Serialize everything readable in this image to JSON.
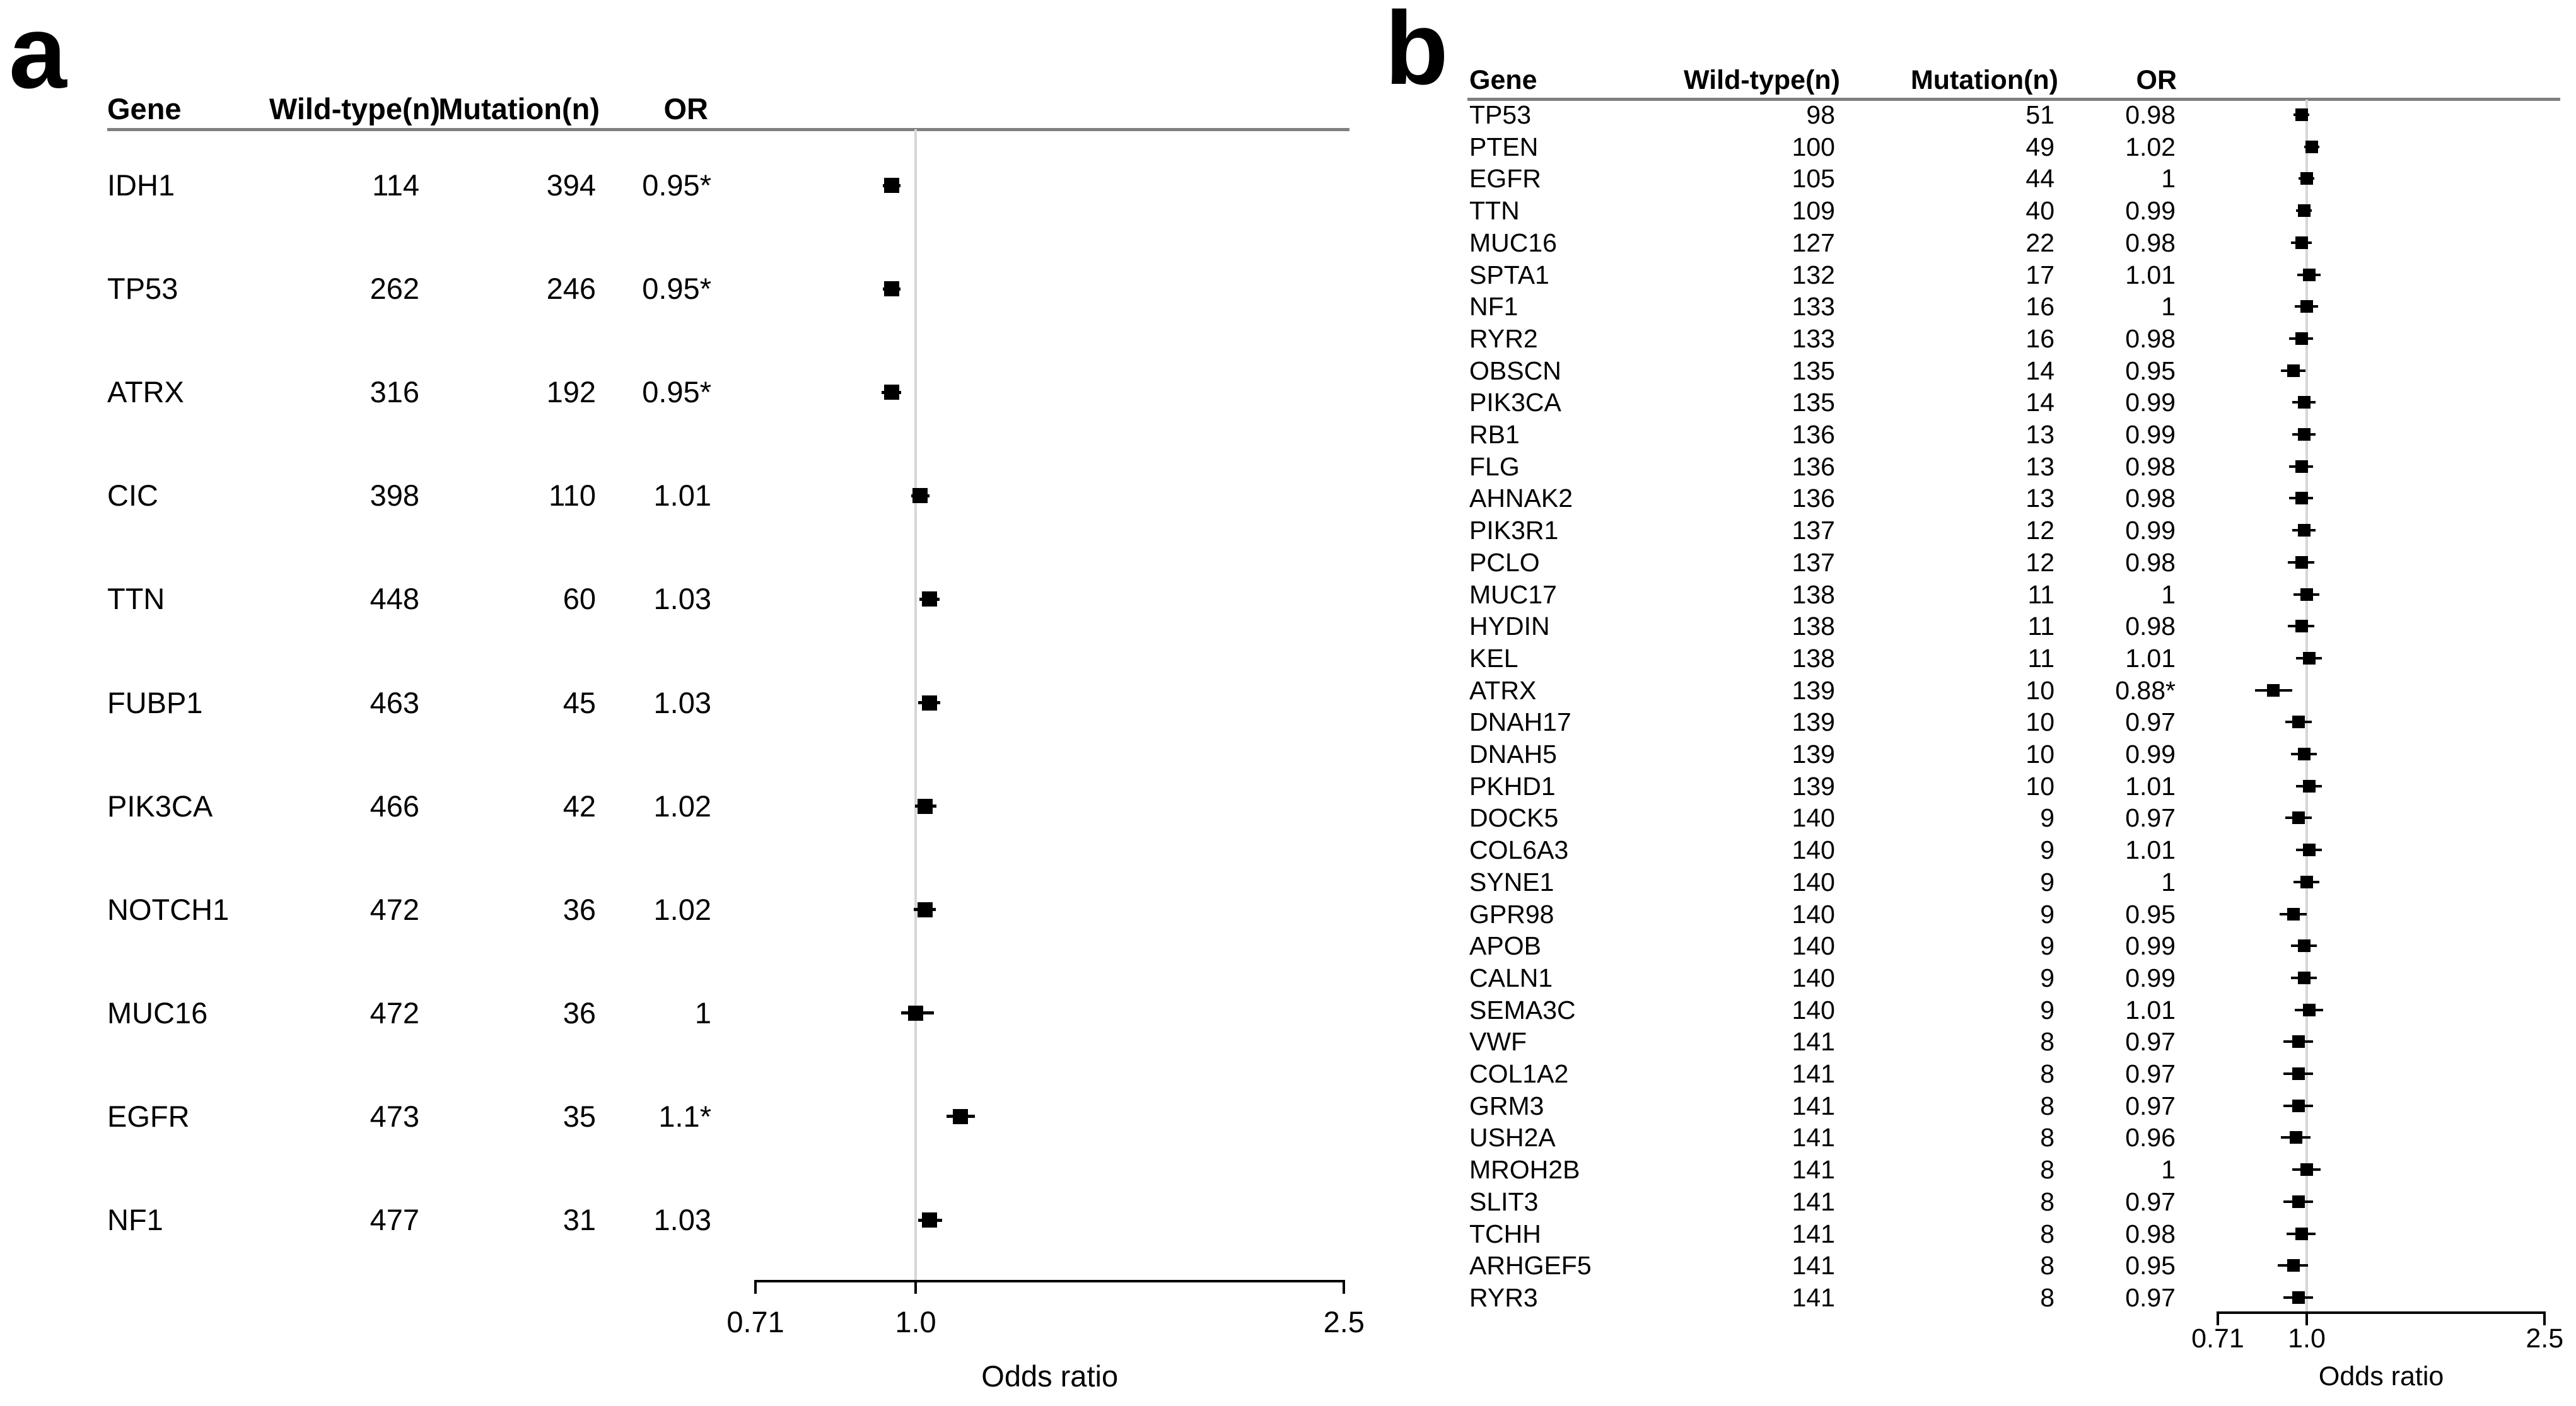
{
  "figure": {
    "panel_a_label": "a",
    "panel_b_label": "b"
  },
  "chart_data": [
    {
      "type": "forest",
      "panel": "a",
      "columns": {
        "gene": "Gene",
        "wild_type": "Wild-type(n)",
        "mutation": "Mutation(n)",
        "or": "OR"
      },
      "axis": {
        "label": "Odds ratio",
        "scale": "log",
        "ticks": [
          "0.71",
          "1.0",
          "2.5"
        ],
        "tick_values": [
          0.71,
          1.0,
          2.5
        ],
        "range": [
          0.71,
          2.5
        ],
        "reference_line": 1.0
      },
      "rows": [
        {
          "gene": "IDH1",
          "wild_type": "114",
          "mutation": "394",
          "or_label": "0.95*",
          "or": 0.95,
          "ci_lo": 0.932,
          "ci_hi": 0.968
        },
        {
          "gene": "TP53",
          "wild_type": "262",
          "mutation": "246",
          "or_label": "0.95*",
          "or": 0.95,
          "ci_lo": 0.932,
          "ci_hi": 0.968
        },
        {
          "gene": "ATRX",
          "wild_type": "316",
          "mutation": "192",
          "or_label": "0.95*",
          "or": 0.95,
          "ci_lo": 0.93,
          "ci_hi": 0.97
        },
        {
          "gene": "CIC",
          "wild_type": "398",
          "mutation": "110",
          "or_label": "1.01",
          "or": 1.01,
          "ci_lo": 0.99,
          "ci_hi": 1.03
        },
        {
          "gene": "TTN",
          "wild_type": "448",
          "mutation": "60",
          "or_label": "1.03",
          "or": 1.03,
          "ci_lo": 1.008,
          "ci_hi": 1.052
        },
        {
          "gene": "FUBP1",
          "wild_type": "463",
          "mutation": "45",
          "or_label": "1.03",
          "or": 1.03,
          "ci_lo": 1.006,
          "ci_hi": 1.054
        },
        {
          "gene": "PIK3CA",
          "wild_type": "466",
          "mutation": "42",
          "or_label": "1.02",
          "or": 1.02,
          "ci_lo": 0.998,
          "ci_hi": 1.045
        },
        {
          "gene": "NOTCH1",
          "wild_type": "472",
          "mutation": "36",
          "or_label": "1.02",
          "or": 1.02,
          "ci_lo": 0.996,
          "ci_hi": 1.044
        },
        {
          "gene": "MUC16",
          "wild_type": "472",
          "mutation": "36",
          "or_label": "1",
          "or": 1.0,
          "ci_lo": 0.97,
          "ci_hi": 1.04
        },
        {
          "gene": "EGFR",
          "wild_type": "473",
          "mutation": "35",
          "or_label": "1.1*",
          "or": 1.1,
          "ci_lo": 1.068,
          "ci_hi": 1.135
        },
        {
          "gene": "NF1",
          "wild_type": "477",
          "mutation": "31",
          "or_label": "1.03",
          "or": 1.03,
          "ci_lo": 1.005,
          "ci_hi": 1.058
        }
      ]
    },
    {
      "type": "forest",
      "panel": "b",
      "columns": {
        "gene": "Gene",
        "wild_type": "Wild-type(n)",
        "mutation": "Mutation(n)",
        "or": "OR"
      },
      "axis": {
        "label": "Odds ratio",
        "scale": "log",
        "ticks": [
          "0.71",
          "1.0",
          "2.5"
        ],
        "tick_values": [
          0.71,
          1.0,
          2.5
        ],
        "range": [
          0.71,
          2.5
        ],
        "reference_line": 1.0
      },
      "rows": [
        {
          "gene": "TP53",
          "wild_type": "98",
          "mutation": "51",
          "or_label": "0.98",
          "or": 0.98,
          "ci_lo": 0.95,
          "ci_hi": 1.01
        },
        {
          "gene": "PTEN",
          "wild_type": "100",
          "mutation": "49",
          "or_label": "1.02",
          "or": 1.02,
          "ci_lo": 0.99,
          "ci_hi": 1.05
        },
        {
          "gene": "EGFR",
          "wild_type": "105",
          "mutation": "44",
          "or_label": "1",
          "or": 1.0,
          "ci_lo": 0.97,
          "ci_hi": 1.03
        },
        {
          "gene": "TTN",
          "wild_type": "109",
          "mutation": "40",
          "or_label": "0.99",
          "or": 0.99,
          "ci_lo": 0.96,
          "ci_hi": 1.02
        },
        {
          "gene": "MUC16",
          "wild_type": "127",
          "mutation": "22",
          "or_label": "0.98",
          "or": 0.98,
          "ci_lo": 0.94,
          "ci_hi": 1.02
        },
        {
          "gene": "SPTA1",
          "wild_type": "132",
          "mutation": "17",
          "or_label": "1.01",
          "or": 1.01,
          "ci_lo": 0.965,
          "ci_hi": 1.055
        },
        {
          "gene": "NF1",
          "wild_type": "133",
          "mutation": "16",
          "or_label": "1",
          "or": 1.0,
          "ci_lo": 0.955,
          "ci_hi": 1.045
        },
        {
          "gene": "RYR2",
          "wild_type": "133",
          "mutation": "16",
          "or_label": "0.98",
          "or": 0.98,
          "ci_lo": 0.935,
          "ci_hi": 1.025
        },
        {
          "gene": "OBSCN",
          "wild_type": "135",
          "mutation": "14",
          "or_label": "0.95",
          "or": 0.95,
          "ci_lo": 0.905,
          "ci_hi": 0.995
        },
        {
          "gene": "PIK3CA",
          "wild_type": "135",
          "mutation": "14",
          "or_label": "0.99",
          "or": 0.99,
          "ci_lo": 0.945,
          "ci_hi": 1.035
        },
        {
          "gene": "RB1",
          "wild_type": "136",
          "mutation": "13",
          "or_label": "0.99",
          "or": 0.99,
          "ci_lo": 0.945,
          "ci_hi": 1.035
        },
        {
          "gene": "FLG",
          "wild_type": "136",
          "mutation": "13",
          "or_label": "0.98",
          "or": 0.98,
          "ci_lo": 0.935,
          "ci_hi": 1.025
        },
        {
          "gene": "AHNAK2",
          "wild_type": "136",
          "mutation": "13",
          "or_label": "0.98",
          "or": 0.98,
          "ci_lo": 0.935,
          "ci_hi": 1.025
        },
        {
          "gene": "PIK3R1",
          "wild_type": "137",
          "mutation": "12",
          "or_label": "0.99",
          "or": 0.99,
          "ci_lo": 0.945,
          "ci_hi": 1.035
        },
        {
          "gene": "PCLO",
          "wild_type": "137",
          "mutation": "12",
          "or_label": "0.98",
          "or": 0.98,
          "ci_lo": 0.93,
          "ci_hi": 1.03
        },
        {
          "gene": "MUC17",
          "wild_type": "138",
          "mutation": "11",
          "or_label": "1",
          "or": 1.0,
          "ci_lo": 0.95,
          "ci_hi": 1.05
        },
        {
          "gene": "HYDIN",
          "wild_type": "138",
          "mutation": "11",
          "or_label": "0.98",
          "or": 0.98,
          "ci_lo": 0.93,
          "ci_hi": 1.03
        },
        {
          "gene": "KEL",
          "wild_type": "138",
          "mutation": "11",
          "or_label": "1.01",
          "or": 1.01,
          "ci_lo": 0.96,
          "ci_hi": 1.06
        },
        {
          "gene": "ATRX",
          "wild_type": "139",
          "mutation": "10",
          "or_label": "0.88*",
          "or": 0.88,
          "ci_lo": 0.82,
          "ci_hi": 0.945
        },
        {
          "gene": "DNAH17",
          "wild_type": "139",
          "mutation": "10",
          "or_label": "0.97",
          "or": 0.97,
          "ci_lo": 0.92,
          "ci_hi": 1.02
        },
        {
          "gene": "DNAH5",
          "wild_type": "139",
          "mutation": "10",
          "or_label": "0.99",
          "or": 0.99,
          "ci_lo": 0.94,
          "ci_hi": 1.04
        },
        {
          "gene": "PKHD1",
          "wild_type": "139",
          "mutation": "10",
          "or_label": "1.01",
          "or": 1.01,
          "ci_lo": 0.96,
          "ci_hi": 1.06
        },
        {
          "gene": "DOCK5",
          "wild_type": "140",
          "mutation": "9",
          "or_label": "0.97",
          "or": 0.97,
          "ci_lo": 0.92,
          "ci_hi": 1.02
        },
        {
          "gene": "COL6A3",
          "wild_type": "140",
          "mutation": "9",
          "or_label": "1.01",
          "or": 1.01,
          "ci_lo": 0.96,
          "ci_hi": 1.06
        },
        {
          "gene": "SYNE1",
          "wild_type": "140",
          "mutation": "9",
          "or_label": "1",
          "or": 1.0,
          "ci_lo": 0.95,
          "ci_hi": 1.05
        },
        {
          "gene": "GPR98",
          "wild_type": "140",
          "mutation": "9",
          "or_label": "0.95",
          "or": 0.95,
          "ci_lo": 0.9,
          "ci_hi": 1.0
        },
        {
          "gene": "APOB",
          "wild_type": "140",
          "mutation": "9",
          "or_label": "0.99",
          "or": 0.99,
          "ci_lo": 0.94,
          "ci_hi": 1.04
        },
        {
          "gene": "CALN1",
          "wild_type": "140",
          "mutation": "9",
          "or_label": "0.99",
          "or": 0.99,
          "ci_lo": 0.94,
          "ci_hi": 1.04
        },
        {
          "gene": "SEMA3C",
          "wild_type": "140",
          "mutation": "9",
          "or_label": "1.01",
          "or": 1.01,
          "ci_lo": 0.955,
          "ci_hi": 1.065
        },
        {
          "gene": "VWF",
          "wild_type": "141",
          "mutation": "8",
          "or_label": "0.97",
          "or": 0.97,
          "ci_lo": 0.915,
          "ci_hi": 1.025
        },
        {
          "gene": "COL1A2",
          "wild_type": "141",
          "mutation": "8",
          "or_label": "0.97",
          "or": 0.97,
          "ci_lo": 0.915,
          "ci_hi": 1.025
        },
        {
          "gene": "GRM3",
          "wild_type": "141",
          "mutation": "8",
          "or_label": "0.97",
          "or": 0.97,
          "ci_lo": 0.915,
          "ci_hi": 1.025
        },
        {
          "gene": "USH2A",
          "wild_type": "141",
          "mutation": "8",
          "or_label": "0.96",
          "or": 0.96,
          "ci_lo": 0.905,
          "ci_hi": 1.015
        },
        {
          "gene": "MROH2B",
          "wild_type": "141",
          "mutation": "8",
          "or_label": "1",
          "or": 1.0,
          "ci_lo": 0.945,
          "ci_hi": 1.055
        },
        {
          "gene": "SLIT3",
          "wild_type": "141",
          "mutation": "8",
          "or_label": "0.97",
          "or": 0.97,
          "ci_lo": 0.915,
          "ci_hi": 1.025
        },
        {
          "gene": "TCHH",
          "wild_type": "141",
          "mutation": "8",
          "or_label": "0.98",
          "or": 0.98,
          "ci_lo": 0.925,
          "ci_hi": 1.035
        },
        {
          "gene": "ARHGEF5",
          "wild_type": "141",
          "mutation": "8",
          "or_label": "0.95",
          "or": 0.95,
          "ci_lo": 0.895,
          "ci_hi": 1.005
        },
        {
          "gene": "RYR3",
          "wild_type": "141",
          "mutation": "8",
          "or_label": "0.97",
          "or": 0.97,
          "ci_lo": 0.915,
          "ci_hi": 1.025
        }
      ]
    }
  ]
}
